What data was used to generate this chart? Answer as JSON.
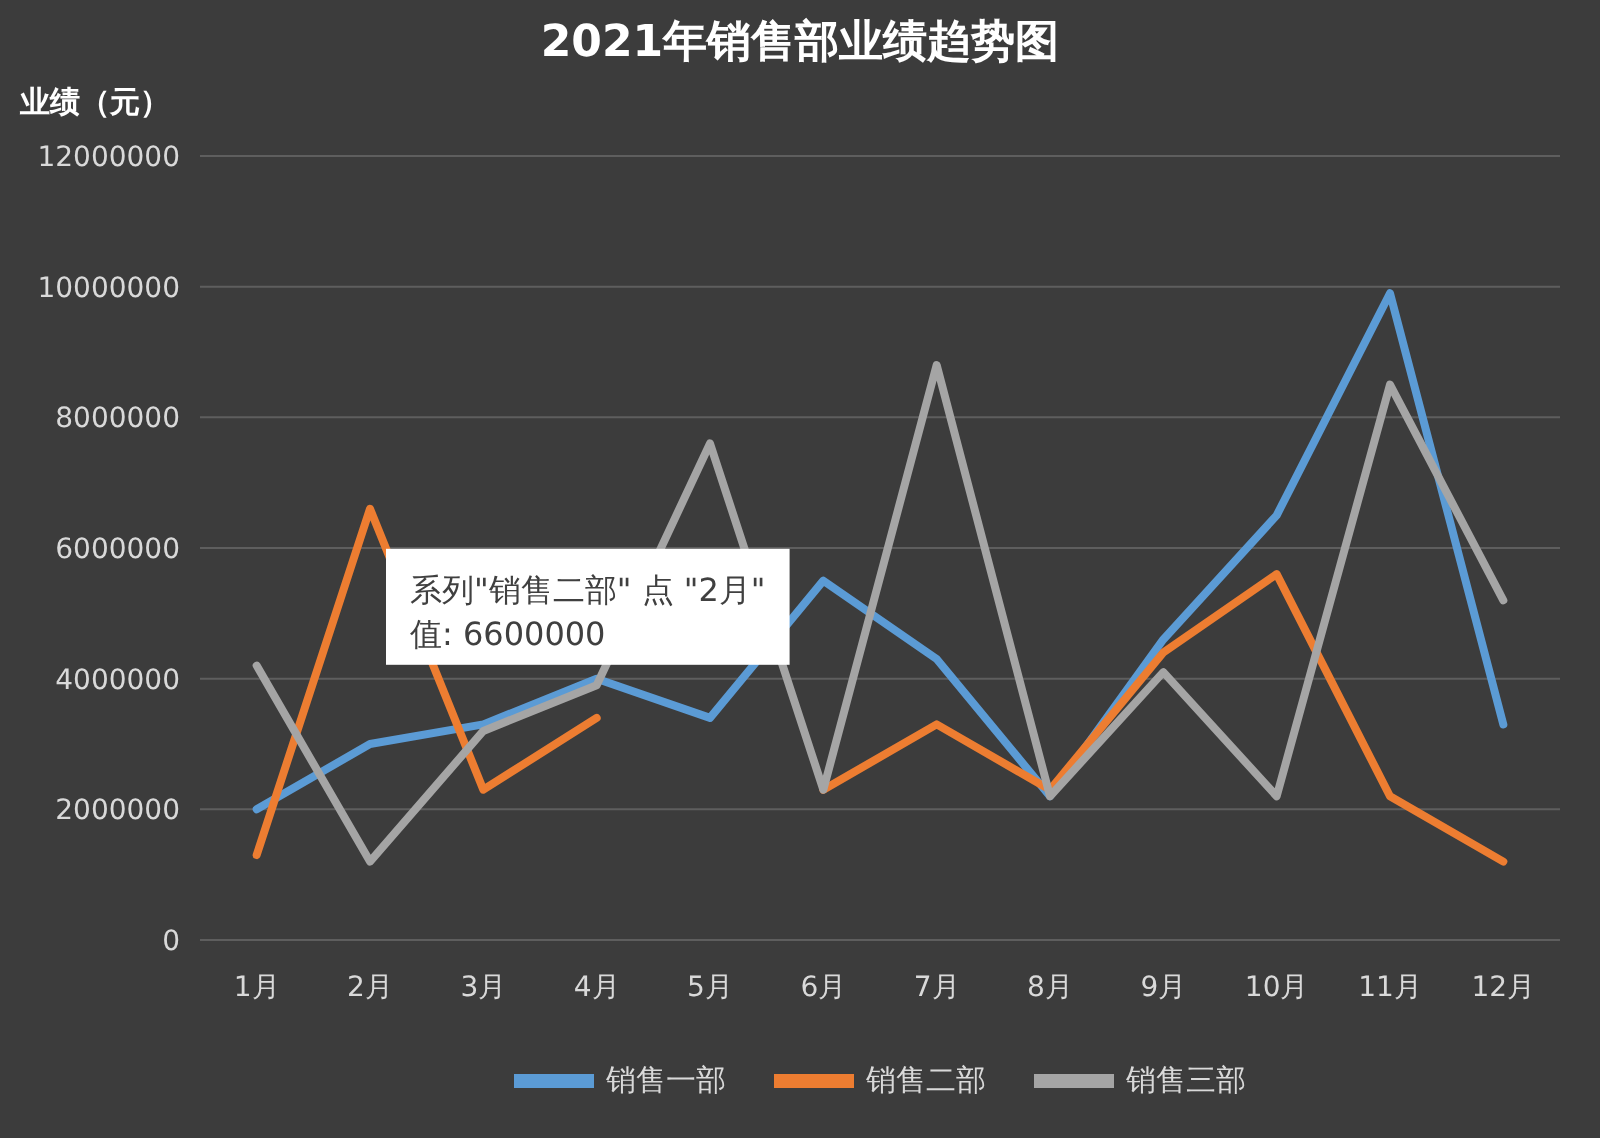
{
  "chart_data": {
    "type": "line",
    "title": "2021年销售部业绩趋势图",
    "ylabel": "业绩（元）",
    "categories": [
      "1月",
      "2月",
      "3月",
      "4月",
      "5月",
      "6月",
      "7月",
      "8月",
      "9月",
      "10月",
      "11月",
      "12月"
    ],
    "series": [
      {
        "name": "销售一部",
        "color": "#5b9bd5",
        "values": [
          2000000,
          3000000,
          3300000,
          4000000,
          3400000,
          5500000,
          4300000,
          2200000,
          4600000,
          6500000,
          9900000,
          3300000
        ]
      },
      {
        "name": "销售二部",
        "color": "#ed7d31",
        "values": [
          1300000,
          6600000,
          2300000,
          3400000,
          null,
          2300000,
          3300000,
          2300000,
          4400000,
          5600000,
          2200000,
          1200000
        ]
      },
      {
        "name": "销售三部",
        "color": "#a5a5a5",
        "values": [
          4200000,
          1200000,
          3200000,
          3900000,
          7600000,
          2300000,
          8800000,
          2200000,
          4100000,
          2200000,
          8500000,
          5200000
        ]
      }
    ],
    "ylim": [
      0,
      12000000
    ],
    "yticks": [
      0,
      2000000,
      4000000,
      6000000,
      8000000,
      10000000,
      12000000
    ],
    "grid": "y",
    "legend": "bottom",
    "annotations": [
      {
        "text": "系列\"销售二部\" 点 \"2月\"\n值: 6600000",
        "x": "2月",
        "y": 6600000
      }
    ]
  }
}
